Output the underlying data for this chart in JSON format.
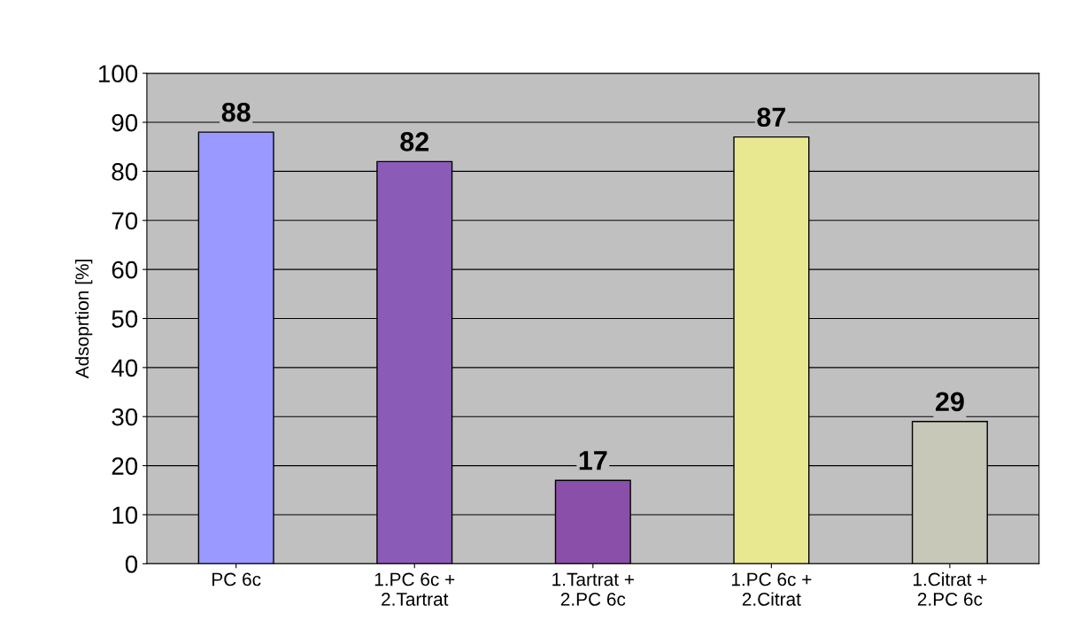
{
  "chart_data": {
    "type": "bar",
    "categories": [
      "PC 6c",
      "1.PC 6c +\n2.Tartrat",
      "1.Tartrat +\n2.PC 6c",
      "1.PC 6c +\n2.Citrat",
      "1.Citrat +\n2.PC 6c"
    ],
    "values": [
      88,
      82,
      17,
      87,
      29
    ],
    "colors": [
      "#9999ff",
      "#8a5cb8",
      "#8a4fa8",
      "#e8e890",
      "#c8c8b8"
    ],
    "ylabel": "Adsoprtion [%]",
    "ylim": [
      0,
      100
    ],
    "yticks": [
      0,
      10,
      20,
      30,
      40,
      50,
      60,
      70,
      80,
      90,
      100
    ],
    "grid": "y",
    "data_labels": true,
    "legend": false
  }
}
